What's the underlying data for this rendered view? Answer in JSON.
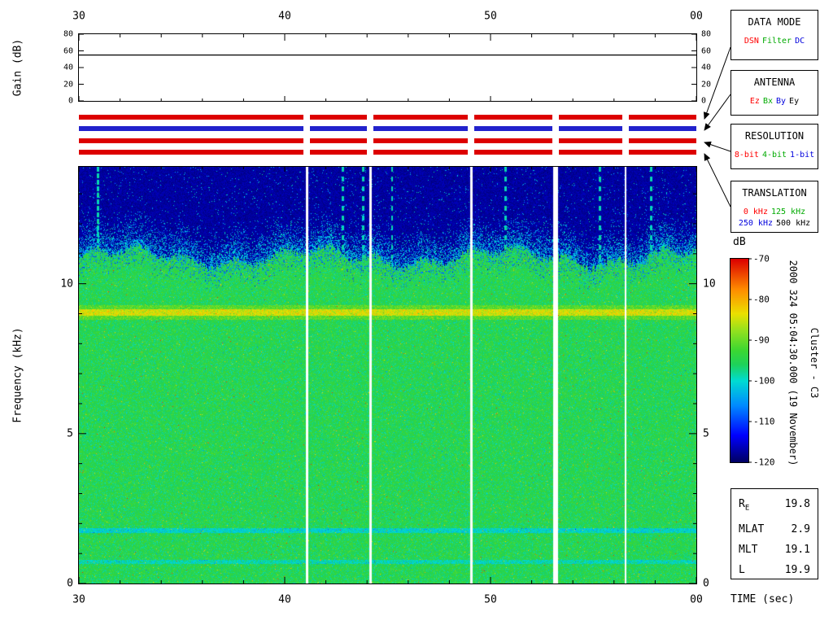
{
  "gain_panel": {
    "ylabel": "Gain (dB)",
    "ytick_values": [
      0,
      20,
      40,
      60,
      80
    ],
    "ytick_labels": [
      "0",
      "20",
      "40",
      "60",
      "80"
    ],
    "ymax": 80,
    "gain_db": 55
  },
  "time_axis": {
    "label": "TIME (sec)",
    "tick_seconds": [
      30,
      40,
      50,
      60
    ],
    "tick_labels": [
      "30",
      "40",
      "50",
      "00"
    ],
    "minor_step_sec": 2,
    "range_sec": [
      30,
      60
    ]
  },
  "freq_axis": {
    "ylabel": "Frequency (kHz)",
    "tick_values": [
      0,
      5,
      10
    ],
    "tick_labels": [
      "0",
      "5",
      "10"
    ],
    "max_khz": 13.9
  },
  "colorbar": {
    "label": "dB",
    "min_db": -120,
    "max_db": -70,
    "tick_labels": [
      "-70",
      "-80",
      "-90",
      "-100",
      "-110",
      "-120"
    ]
  },
  "legend_boxes": [
    {
      "title": "DATA MODE",
      "rows": [
        [
          {
            "label": "DSN",
            "color": "#ff0000"
          },
          {
            "label": "Filter",
            "color": "#00aa00"
          },
          {
            "label": "DC",
            "color": "#0000dd"
          }
        ]
      ]
    },
    {
      "title": "ANTENNA",
      "rows": [
        [
          {
            "label": "Ez",
            "color": "#ff0000"
          },
          {
            "label": "Bx",
            "color": "#00aa00"
          },
          {
            "label": "By",
            "color": "#0000dd"
          },
          {
            "label": "Ey",
            "color": "#000000"
          }
        ]
      ]
    },
    {
      "title": "RESOLUTION",
      "rows": [
        [
          {
            "label": "8-bit",
            "color": "#ff0000"
          },
          {
            "label": "4-bit",
            "color": "#00aa00"
          },
          {
            "label": "1-bit",
            "color": "#0000dd"
          }
        ]
      ]
    },
    {
      "title": "TRANSLATION",
      "rows": [
        [
          {
            "label": "0 kHz",
            "color": "#ff0000"
          },
          {
            "label": "125 kHz",
            "color": "#00aa00"
          }
        ],
        [
          {
            "label": "250 kHz",
            "color": "#0000dd"
          },
          {
            "label": "500 kHz",
            "color": "#000000"
          }
        ]
      ]
    }
  ],
  "status_bars": [
    {
      "category": "DATA MODE",
      "selected": "DSN",
      "color": "#dd0000"
    },
    {
      "category": "ANTENNA",
      "selected": "By",
      "color": "#2222cc"
    },
    {
      "category": "RESOLUTION",
      "selected": "8-bit",
      "color": "#dd0000"
    },
    {
      "category": "TRANSLATION",
      "selected": "0 kHz",
      "color": "#dd0000"
    }
  ],
  "side_annotations": {
    "datetime": "2000 324 05:04:30.000 (19 November)",
    "spacecraft": "Cluster - C3"
  },
  "ephemeris": {
    "rows": [
      {
        "label": "R",
        "sub": "E",
        "value": "19.8"
      },
      {
        "label": "MLAT",
        "value": "2.9"
      },
      {
        "label": "MLT",
        "value": "19.1"
      },
      {
        "label": "L",
        "value": "19.9"
      }
    ]
  },
  "chart_data": [
    {
      "type": "line",
      "title": "Receiver Gain",
      "ylabel": "Gain (dB)",
      "xlabel": "TIME (sec)",
      "x": [
        30,
        60
      ],
      "values": [
        55,
        55
      ],
      "ylim": [
        0,
        80
      ],
      "yticks": [
        0,
        20,
        40,
        60,
        80
      ],
      "x_tick_labels": [
        "30",
        "40",
        "50",
        "00"
      ],
      "note": "constant gain ~55 dB across whole interval"
    },
    {
      "type": "heatmap",
      "title": "Cluster C3 WBD wideband spectrogram",
      "xlabel": "TIME (sec)",
      "ylabel": "Frequency (kHz)",
      "xlim_sec": [
        30,
        60
      ],
      "x_tick_labels": [
        "30",
        "40",
        "50",
        "00"
      ],
      "ylim_khz": [
        0,
        13.9
      ],
      "yticks_khz": [
        0,
        5,
        10
      ],
      "colorbar": {
        "label": "dB",
        "min": -120,
        "max": -70,
        "ticks": [
          -70,
          -80,
          -90,
          -100,
          -110,
          -120
        ]
      },
      "features": {
        "broadband_level_db": -95,
        "broadband_upper_edge_khz": 10.9,
        "noise_floor_db": -118,
        "enhanced_band_khz": 9.05,
        "enhanced_band_level_db": -85,
        "weak_bands_khz": [
          0.74,
          1.78
        ],
        "data_gaps_sec": [
          41.05,
          44.15,
          49.05,
          53.15,
          56.55
        ],
        "data_gap_widths_sec": [
          0.12,
          0.12,
          0.12,
          0.22,
          0.08
        ],
        "interference_lines_sec": [
          30.9,
          42.8,
          43.8,
          45.2,
          50.7,
          55.3,
          57.8
        ]
      },
      "start_time": "2000 324 05:04:30.000 (19 November)",
      "spacecraft": "Cluster - C3",
      "status": {
        "data_mode": "DSN",
        "antenna": "By",
        "resolution": "8-bit",
        "translation": "0 kHz"
      }
    }
  ]
}
